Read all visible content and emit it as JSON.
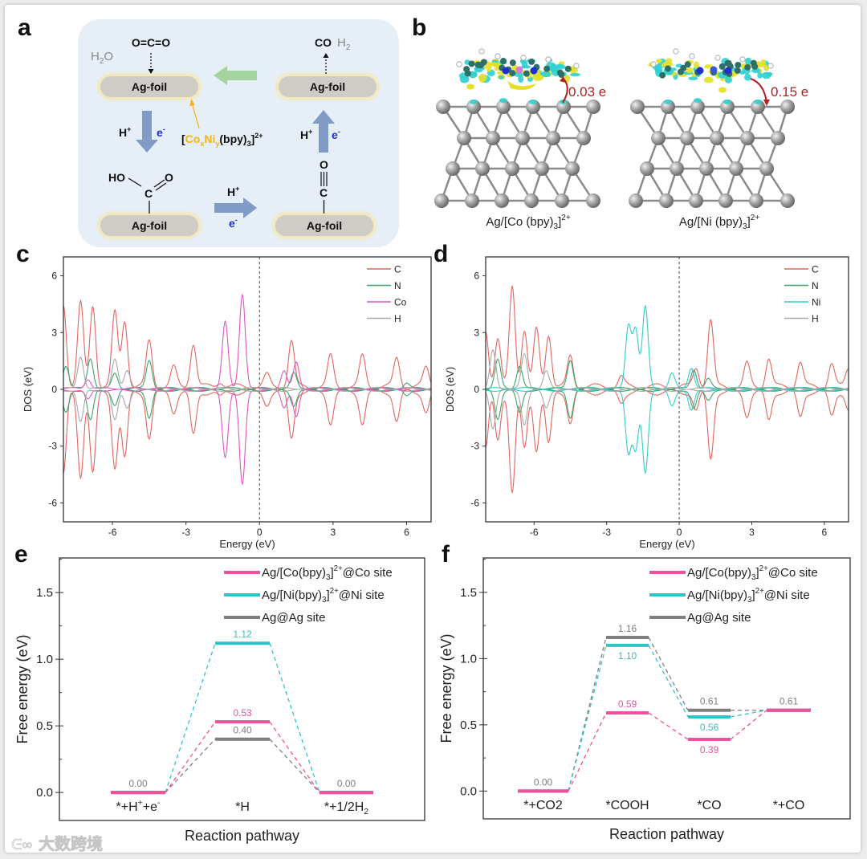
{
  "panel_labels": {
    "a": "a",
    "b": "b",
    "c": "c",
    "d": "d",
    "e": "e",
    "f": "f"
  },
  "panel_a": {
    "foil_label": "Ag-foil",
    "co2": "O=C=O",
    "h2o": {
      "main": "H",
      "sub": "2",
      "end": "O"
    },
    "co": "CO",
    "h2": {
      "main": "H",
      "sub": "2"
    },
    "h_plus": {
      "main": "H",
      "sup": "+"
    },
    "e_minus": {
      "main": "e",
      "sup": "-"
    },
    "catalyst": {
      "open": "[",
      "co": "Co",
      "x": "x",
      "ni": "Ni",
      "y": "y",
      "bpy": "(bpy)",
      "sub3": "3",
      "close": "]",
      "charge": "2+"
    },
    "cooh": {
      "ho": "HO",
      "c": "C",
      "o": "O"
    },
    "co_adsorbed": {
      "o": "O",
      "c": "C"
    },
    "colors": {
      "background": "#e6eef8",
      "foil": "#cfcbc6",
      "glow": "#f6e7a8",
      "blue_arrow": "#7f9bc6",
      "green_arrow": "#a5d3a0",
      "catalyst_yellow": "#f2b418",
      "electron_blue": "#1a2fd0"
    }
  },
  "panel_b": {
    "structures": [
      {
        "caption": {
          "pre": "Ag/[Co (bpy)",
          "sub": "3",
          "close": "]",
          "sup": "2+"
        },
        "charge_transfer": "0.03 e",
        "metal_color": "#e07ad0"
      },
      {
        "caption": {
          "pre": "Ag/[Ni (bpy)",
          "sub": "3",
          "close": "]",
          "sup": "2+"
        },
        "charge_transfer": "0.15 e",
        "metal_color": "#3a55d8"
      }
    ],
    "colors": {
      "ag": "#9a9a9a",
      "carbon": "#2f6f6a",
      "nitrogen": "#1f2fd0",
      "hydrogen": "#ffffff",
      "cyan_iso": "#2fd0d0",
      "yellow_iso": "#e6e02a",
      "arrow": "#b22020"
    }
  },
  "watermark": "大数跨境",
  "chart_data": [
    {
      "id": "c",
      "type": "line",
      "title": "",
      "xlabel": "Energy (eV)",
      "ylabel": "DOS (eV)",
      "xlim": [
        -8,
        7
      ],
      "ylim": [
        -7,
        7
      ],
      "xticks": [
        -6,
        -3,
        0,
        3,
        6
      ],
      "yticks": [
        -6,
        -3,
        0,
        3,
        6
      ],
      "xtick_labels": [
        "-6",
        "-3",
        "0",
        "3",
        "6"
      ],
      "ytick_labels": [
        "-6",
        "-3",
        "0",
        "3",
        "6"
      ],
      "fermi_level": 0,
      "legend_position": "top-right",
      "spin_polarized": true,
      "series": [
        {
          "name": "C",
          "color": "#e0665f",
          "peaks": [
            [
              -8,
              4.4
            ],
            [
              -7.3,
              4.4
            ],
            [
              -6.8,
              4.3
            ],
            [
              -5.9,
              3.9
            ],
            [
              -5.5,
              3.5
            ],
            [
              -4.5,
              2.4
            ],
            [
              -3.5,
              1.0
            ],
            [
              -2.7,
              2.3
            ],
            [
              -1.6,
              0.3
            ],
            [
              0.3,
              0.6
            ],
            [
              1.3,
              2.4
            ],
            [
              2.9,
              1.6
            ],
            [
              4.2,
              1.6
            ],
            [
              5.6,
              1.5
            ],
            [
              6.8,
              1.0
            ]
          ]
        },
        {
          "name": "N",
          "color": "#3aa66a",
          "peaks": [
            [
              -7.9,
              1.2
            ],
            [
              -6.9,
              1.6
            ],
            [
              -5.9,
              0.8
            ],
            [
              -4.5,
              1.5
            ],
            [
              1.4,
              0.8
            ],
            [
              6.0,
              0.3
            ]
          ]
        },
        {
          "name": "Co",
          "color": "#e055c0",
          "peaks": [
            [
              -7.0,
              0.5
            ],
            [
              -1.4,
              3.5
            ],
            [
              -0.7,
              5.0
            ],
            [
              1.0,
              0.9
            ],
            [
              1.5,
              1.4
            ]
          ]
        },
        {
          "name": "H",
          "color": "#a8a8a8",
          "peaks": [
            [
              -7.3,
              1.7
            ],
            [
              -5.9,
              1.6
            ],
            [
              -5.4,
              0.9
            ]
          ]
        }
      ]
    },
    {
      "id": "d",
      "type": "line",
      "title": "",
      "xlabel": "Energy (eV)",
      "ylabel": "DOS (eV)",
      "xlim": [
        -8,
        7
      ],
      "ylim": [
        -7,
        7
      ],
      "xticks": [
        -6,
        -3,
        0,
        3,
        6
      ],
      "yticks": [
        -6,
        -3,
        0,
        3,
        6
      ],
      "xtick_labels": [
        "-6",
        "-3",
        "0",
        "3",
        "6"
      ],
      "ytick_labels": [
        "-6",
        "-3",
        "0",
        "3",
        "6"
      ],
      "fermi_level": 0,
      "legend_position": "top-right",
      "spin_polarized": true,
      "series": [
        {
          "name": "C",
          "color": "#e0665f",
          "peaks": [
            [
              -8,
              3.0
            ],
            [
              -7.5,
              2.5
            ],
            [
              -6.9,
              5.3
            ],
            [
              -6.4,
              3.0
            ],
            [
              -5.9,
              3.0
            ],
            [
              -5.4,
              2.8
            ],
            [
              -4.5,
              1.6
            ],
            [
              -2.4,
              0.5
            ],
            [
              0.7,
              1.0
            ],
            [
              1.3,
              3.5
            ],
            [
              2.8,
              1.2
            ],
            [
              3.7,
              1.5
            ],
            [
              5.0,
              1.3
            ],
            [
              6.3,
              1.2
            ],
            [
              7.0,
              1.0
            ]
          ]
        },
        {
          "name": "N",
          "color": "#3aa66a",
          "peaks": [
            [
              -7.5,
              1.5
            ],
            [
              -6.6,
              1.2
            ],
            [
              -4.5,
              1.5
            ],
            [
              0.6,
              1.0
            ],
            [
              1.2,
              0.5
            ]
          ]
        },
        {
          "name": "Ni",
          "color": "#33cccc",
          "peaks": [
            [
              -2.1,
              3.3
            ],
            [
              -1.8,
              3.1
            ],
            [
              -1.4,
              4.3
            ],
            [
              -0.3,
              0.8
            ],
            [
              0.5,
              1.1
            ]
          ]
        },
        {
          "name": "H",
          "color": "#a8a8a8",
          "peaks": [
            [
              -7.7,
              2.0
            ],
            [
              -6.4,
              1.8
            ],
            [
              -5.5,
              0.9
            ]
          ]
        }
      ]
    },
    {
      "id": "e",
      "type": "line",
      "title": "",
      "xlabel": "Reaction pathway",
      "ylabel": "Free energy (eV)",
      "ylim": [
        -0.21,
        1.76
      ],
      "yticks": [
        0.0,
        0.5,
        1.0,
        1.5
      ],
      "ytick_labels": [
        "0.0",
        "0.5",
        "1.0",
        "1.5"
      ],
      "categories": [
        {
          "main": "*+H",
          "sup1": "+",
          "mid": "+e",
          "sup2": "-"
        },
        {
          "main": "*H"
        },
        {
          "main": "*+1/2H",
          "sub": "2"
        }
      ],
      "legend_position": "top-right",
      "series": [
        {
          "name": {
            "pre": "Ag/[Co(bpy)",
            "sub": "3",
            "close": "]",
            "sup": "2+",
            "post": "@Co site"
          },
          "color": "#f0509c",
          "values": [
            0,
            0.53,
            0
          ]
        },
        {
          "name": {
            "pre": "Ag/[Ni(bpy)",
            "sub": "3",
            "close": "]",
            "sup": "2+",
            "post": "@Ni site"
          },
          "color": "#2ec4c8",
          "values": [
            0,
            1.12,
            0
          ]
        },
        {
          "name": {
            "pre": "Ag@Ag site"
          },
          "color": "#7f7f7f",
          "values": [
            0,
            0.4,
            0
          ]
        }
      ],
      "value_labels": [
        {
          "series": 2,
          "step": 0,
          "text": "0.00",
          "position": "above"
        },
        {
          "series": 1,
          "step": 1,
          "text": "1.12",
          "position": "above"
        },
        {
          "series": 0,
          "step": 1,
          "text": "0.53",
          "position": "above"
        },
        {
          "series": 2,
          "step": 1,
          "text": "0.40",
          "position": "above"
        },
        {
          "series": 2,
          "step": 2,
          "text": "0.00",
          "position": "above"
        }
      ]
    },
    {
      "id": "f",
      "type": "line",
      "title": "",
      "xlabel": "Reaction pathway",
      "ylabel": "Free energy (eV)",
      "ylim": [
        -0.21,
        1.76
      ],
      "yticks": [
        0.0,
        0.5,
        1.0,
        1.5
      ],
      "ytick_labels": [
        "0.0",
        "0.5",
        "1.0",
        "1.5"
      ],
      "categories": [
        {
          "main": "*+CO2"
        },
        {
          "main": "*COOH"
        },
        {
          "main": "*CO"
        },
        {
          "main": "*+CO"
        }
      ],
      "legend_position": "top-right",
      "series": [
        {
          "name": {
            "pre": "Ag/[Co(bpy)",
            "sub": "3",
            "close": "]",
            "sup": "2+",
            "post": "@Co site"
          },
          "color": "#f0509c",
          "values": [
            0,
            0.59,
            0.39,
            0.61
          ]
        },
        {
          "name": {
            "pre": "Ag/[Ni(bpy)",
            "sub": "3",
            "close": "]",
            "sup": "2+",
            "post": "@Ni site"
          },
          "color": "#2ec4c8",
          "values": [
            0,
            1.1,
            0.56,
            0.61
          ]
        },
        {
          "name": {
            "pre": "Ag@Ag site"
          },
          "color": "#7f7f7f",
          "values": [
            0,
            1.16,
            0.61,
            0.61
          ]
        }
      ],
      "value_labels": [
        {
          "series": 2,
          "step": 0,
          "text": "0.00",
          "position": "above"
        },
        {
          "series": 2,
          "step": 1,
          "text": "1.16",
          "position": "above"
        },
        {
          "series": 1,
          "step": 1,
          "text": "1.10",
          "position": "below"
        },
        {
          "series": 0,
          "step": 1,
          "text": "0.59",
          "position": "above"
        },
        {
          "series": 2,
          "step": 2,
          "text": "0.61",
          "position": "above"
        },
        {
          "series": 1,
          "step": 2,
          "text": "0.56",
          "position": "below"
        },
        {
          "series": 0,
          "step": 2,
          "text": "0.39",
          "position": "below"
        },
        {
          "series": 2,
          "step": 3,
          "text": "0.61",
          "position": "above"
        }
      ]
    }
  ]
}
